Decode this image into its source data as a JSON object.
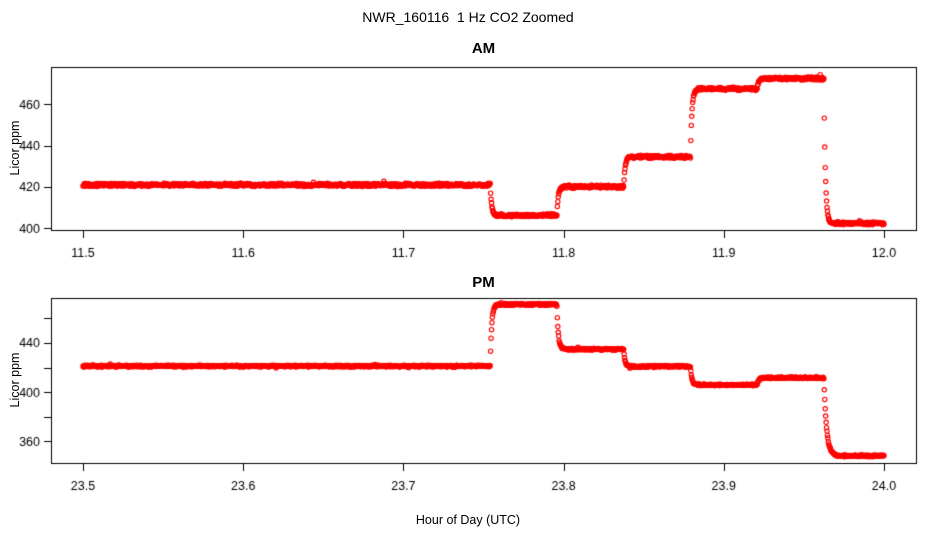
{
  "header": {
    "title": "NWR_160116  1 Hz CO2 Zoomed"
  },
  "x_axis_label": "Hour of Day (UTC)",
  "colors": {
    "points": "#ff0000",
    "axis": "#000000",
    "background": "#ffffff"
  },
  "chart_data": [
    {
      "type": "scatter",
      "title": "AM",
      "ylabel": "Licor ppm",
      "xlabel": "",
      "point_color": "#ff0000",
      "marker": "open-circle",
      "sample_rate_hz": 1,
      "x_start": 11.5,
      "x_end": 12.0,
      "xlim": [
        11.48,
        12.02
      ],
      "ylim": [
        399.2,
        478.0
      ],
      "grid": false,
      "xticks": [
        {
          "value": 11.5,
          "label": "11.5"
        },
        {
          "value": 11.6,
          "label": "11.6"
        },
        {
          "value": 11.7,
          "label": "11.7"
        },
        {
          "value": 11.8,
          "label": "11.8"
        },
        {
          "value": 11.9,
          "label": "11.9"
        },
        {
          "value": 12.0,
          "label": "12.0"
        }
      ],
      "yticks": [
        {
          "value": 400,
          "label": "400"
        },
        {
          "value": 420,
          "label": "420"
        },
        {
          "value": 440,
          "label": "440"
        },
        {
          "value": 460,
          "label": "460"
        }
      ],
      "noise_ppm": 0.85,
      "transition_tau_s": 3.2,
      "segments": [
        {
          "start": 11.5,
          "end": 11.7542,
          "value": 421.0
        },
        {
          "start": 11.7542,
          "end": 11.7958,
          "value": 406.3
        },
        {
          "start": 11.7958,
          "end": 11.8375,
          "value": 420.1
        },
        {
          "start": 11.8375,
          "end": 11.8792,
          "value": 434.6
        },
        {
          "start": 11.8792,
          "end": 11.9208,
          "value": 467.4
        },
        {
          "start": 11.9208,
          "end": 11.9625,
          "value": 472.4
        },
        {
          "start": 11.9625,
          "end": 12.0,
          "value": 402.4
        }
      ]
    },
    {
      "type": "scatter",
      "title": "PM",
      "ylabel": "Licor ppm",
      "xlabel": "Hour of Day (UTC)",
      "point_color": "#ff0000",
      "marker": "open-circle",
      "sample_rate_hz": 1,
      "x_start": 23.5,
      "x_end": 24.0,
      "xlim": [
        23.48,
        24.02
      ],
      "ylim": [
        342.5,
        476.5
      ],
      "grid": false,
      "xticks": [
        {
          "value": 23.5,
          "label": "23.5"
        },
        {
          "value": 23.6,
          "label": "23.6"
        },
        {
          "value": 23.7,
          "label": "23.7"
        },
        {
          "value": 23.8,
          "label": "23.8"
        },
        {
          "value": 23.9,
          "label": "23.9"
        },
        {
          "value": 24.0,
          "label": "24.0"
        }
      ],
      "yticks": [
        {
          "value": 360,
          "label": "360"
        },
        {
          "value": 380,
          "label": ""
        },
        {
          "value": 400,
          "label": "400"
        },
        {
          "value": 420,
          "label": ""
        },
        {
          "value": 440,
          "label": "440"
        },
        {
          "value": 460,
          "label": ""
        }
      ],
      "noise_ppm": 0.85,
      "transition_tau_s": 3.2,
      "segments": [
        {
          "start": 23.5,
          "end": 23.7542,
          "value": 421.2
        },
        {
          "start": 23.7542,
          "end": 23.7958,
          "value": 471.3
        },
        {
          "start": 23.7958,
          "end": 23.8375,
          "value": 434.9
        },
        {
          "start": 23.8375,
          "end": 23.8792,
          "value": 420.9
        },
        {
          "start": 23.8792,
          "end": 23.9208,
          "value": 405.9
        },
        {
          "start": 23.9208,
          "end": 23.9625,
          "value": 411.6
        },
        {
          "start": 23.9625,
          "end": 24.0,
          "value": 348.3,
          "tau_s": 6
        }
      ]
    }
  ]
}
